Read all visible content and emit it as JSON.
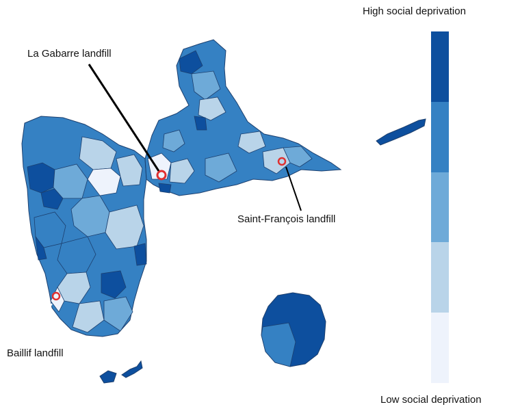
{
  "legend": {
    "high_label": "High social deprivation",
    "low_label": "Low social deprivation",
    "classes": [
      "#0d4f9e",
      "#3581c3",
      "#6eaad8",
      "#b9d4e9",
      "#eef3fc"
    ]
  },
  "landfills": [
    {
      "id": "la-gabarre",
      "label": "La Gabarre landfill"
    },
    {
      "id": "saint-francois",
      "label": "Saint-François landfill"
    },
    {
      "id": "baillif",
      "label": "Baillif landfill"
    }
  ],
  "colors": {
    "marker": "#e03030",
    "border": "#1c3f6e",
    "leader": "#000000"
  }
}
